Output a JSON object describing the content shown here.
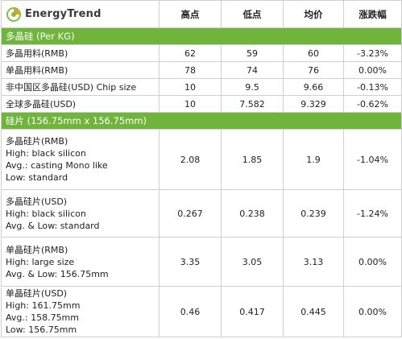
{
  "header": {
    "logo_text": "EnergyTrend",
    "columns": [
      "高点",
      "低点",
      "均价",
      "涨跌幅"
    ]
  },
  "sections": [
    {
      "title": "多晶硅 (Per KG)",
      "rows": [
        {
          "label": [
            "多晶用料(RMB)"
          ],
          "high": "62",
          "low": "59",
          "avg": "60",
          "change": "-3.23%"
        },
        {
          "label": [
            "单晶用料(RMB)"
          ],
          "high": "78",
          "low": "74",
          "avg": "76",
          "change": "0.00%"
        },
        {
          "label": [
            "非中国区多晶硅(USD) Chip size"
          ],
          "high": "10",
          "low": "9.5",
          "avg": "9.66",
          "change": "-0.13%"
        },
        {
          "label": [
            "全球多晶硅(USD)"
          ],
          "high": "10",
          "low": "7.582",
          "avg": "9.329",
          "change": "-0.62%"
        }
      ]
    },
    {
      "title": "硅片 (156.75mm x 156.75mm)",
      "rows": [
        {
          "label": [
            "多晶硅片(RMB)",
            "High: black silicon",
            "Avg.: casting Mono like",
            "Low: standard"
          ],
          "high": "2.08",
          "low": "1.85",
          "avg": "1.9",
          "change": "-1.04%"
        },
        {
          "label": [
            "多晶硅片(USD)",
            "High: black silicon",
            "Avg. & Low: standard"
          ],
          "high": "0.267",
          "low": "0.238",
          "avg": "0.239",
          "change": "-1.24%"
        },
        {
          "label": [
            "单晶硅片(RMB)",
            "High: large size",
            "Avg. & Low: 156.75mm"
          ],
          "high": "3.35",
          "low": "3.05",
          "avg": "3.13",
          "change": "0.00%"
        },
        {
          "label": [
            "单晶硅片(USD)",
            "High: 161.75mm",
            "Avg.: 158.75mm",
            "Low: 156.75mm"
          ],
          "high": "0.46",
          "low": "0.417",
          "avg": "0.445",
          "change": "0.00%"
        }
      ]
    }
  ],
  "colors": {
    "section_bg": "#6fb43b",
    "logo_green": "#7cc242",
    "logo_orange": "#f29a1f"
  }
}
